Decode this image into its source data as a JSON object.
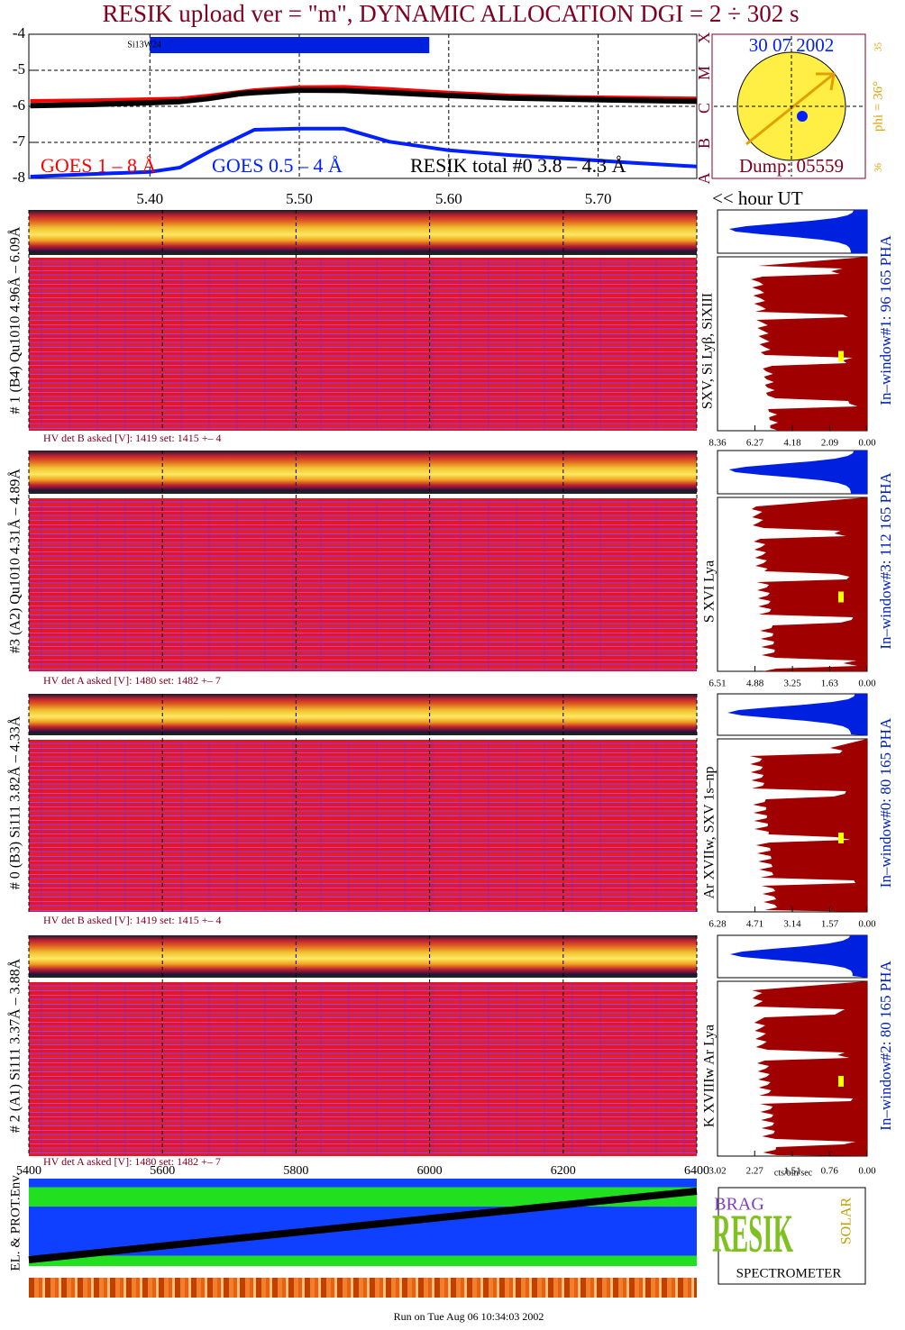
{
  "title": "RESIK upload ver = \"m\", DYNAMIC ALLOCATION  DGI =   2 ÷ 302 s",
  "chart_data": [
    {
      "type": "line",
      "x_label": "<< hour UT",
      "x": [
        5.32,
        5.36,
        5.4,
        5.42,
        5.44,
        5.46,
        5.47,
        5.5,
        5.53,
        5.56,
        5.6,
        5.64,
        5.68,
        5.72,
        5.766
      ],
      "series": [
        {
          "name": "GOES 1 – 8 Å",
          "color": "#ff0000",
          "values": [
            -5.85,
            -5.83,
            -5.8,
            -5.78,
            -5.7,
            -5.6,
            -5.55,
            -5.47,
            -5.46,
            -5.52,
            -5.62,
            -5.7,
            -5.74,
            -5.76,
            -5.78
          ]
        },
        {
          "name": "GOES 0.5 – 4 Å",
          "color": "#0020ff",
          "values": [
            -7.95,
            -7.88,
            -7.82,
            -7.7,
            -7.25,
            -6.85,
            -6.65,
            -6.62,
            -6.62,
            -6.98,
            -7.22,
            -7.35,
            -7.45,
            -7.56,
            -7.67
          ]
        },
        {
          "name": "RESIK total #0  3.8 – 4.3 Å",
          "color": "#000000",
          "values": [
            -5.98,
            -5.95,
            -5.9,
            -5.87,
            -5.78,
            -5.65,
            -5.62,
            -5.55,
            -5.56,
            -5.62,
            -5.7,
            -5.77,
            -5.8,
            -5.83,
            -5.86
          ]
        }
      ],
      "annotation": {
        "label": "Si13W24",
        "x": [
          5.4,
          5.587
        ],
        "y": -4.3
      },
      "xlim": [
        5.319,
        5.766
      ],
      "ylim": [
        -4,
        -8
      ],
      "xticks": [
        {
          "value": 5.4,
          "label": "5.40"
        },
        {
          "value": 5.5,
          "label": "5.50"
        },
        {
          "value": 5.6,
          "label": "5.60"
        },
        {
          "value": 5.7,
          "label": "5.70"
        }
      ],
      "yticks": [
        -4,
        -5,
        -6,
        -7,
        -8
      ],
      "grid": true
    }
  ],
  "goes_classes": [
    "X",
    "M",
    "C",
    "B",
    "A"
  ],
  "sun": {
    "date": "30 07 2002",
    "phi": "phi = 36°",
    "scale_top": "35",
    "scale_bottom": "36",
    "dump": "Dump: 05559"
  },
  "panels": [
    {
      "label": "# 1 (B4) Qu1010 4.96Å – 6.09Å",
      "hv": "HV det B asked [V]:  1419 set:  1415 +–   4",
      "lines": "SXV, Si Lyβ, SiXIII",
      "window": "In–window#1:   96 165  PHA",
      "pha_xlim": [
        8.36,
        0
      ],
      "pha_xticks": [
        8.36,
        6.27,
        4.18,
        2.09,
        {
          "value": 0,
          "label": "0.00"
        }
      ]
    },
    {
      "label": "#3 (A2) Qu1010  4.31Å – 4.89Å",
      "hv": "HV det A asked [V]:  1480 set:  1482 +–   7",
      "lines": "S XVI Lya",
      "window": "In–window#3:  112 165  PHA",
      "pha_xlim": [
        6.51,
        0
      ],
      "pha_xticks": [
        6.51,
        4.88,
        3.25,
        1.63,
        {
          "value": 0,
          "label": "0.00"
        }
      ]
    },
    {
      "label": "# 0 (B3) Si111  3.82Å – 4.33Å",
      "hv": "HV det B asked [V]:  1419 set:  1415 +–   4",
      "lines": "Ar XVIIw,  SXV 1s–np",
      "window": "In–window#0:   80 165  PHA",
      "pha_xlim": [
        6.28,
        0
      ],
      "pha_xticks": [
        6.28,
        4.71,
        3.14,
        1.57,
        {
          "value": 0,
          "label": "0.00"
        }
      ]
    },
    {
      "label": "# 2 (A1) Si111  3.37Å –  3.88Å",
      "hv": "HV det A asked [V]:  1480 set:  1482 +–   7",
      "lines": "K XVIIIw  Ar Lya",
      "window": "In–window#2:   80 165  PHA",
      "pha_xlim": [
        3.02,
        0
      ],
      "pha_xticks": [
        3.02,
        2.27,
        1.51,
        0.76,
        {
          "value": 0,
          "label": "0.00"
        }
      ]
    }
  ],
  "pha_unit": "cts/bin/sec",
  "time_axis": {
    "xlim": [
      5400,
      6400
    ],
    "xticks": [
      5400,
      5600,
      5800,
      6000,
      6200,
      6400
    ]
  },
  "env_label": "EL. & PROT.Env.",
  "logo": {
    "letters": "RESIK",
    "top": "BRAG",
    "side": "SOLAR",
    "bottom": "SPECTROMETER"
  },
  "footer": "Run on Tue Aug 06 10:34:03 2002"
}
